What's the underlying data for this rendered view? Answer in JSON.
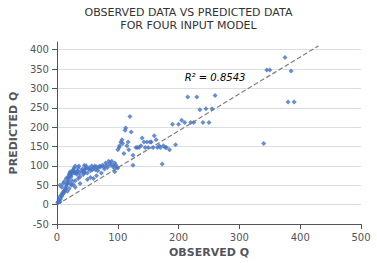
{
  "chart_data": {
    "type": "scatter",
    "title": "OBSERVED DATA VS PREDICTED DATA",
    "subtitle": "FOR FOUR INPUT MODEL",
    "xlabel": "OBSERVED Q",
    "ylabel": "PREDICTED Q",
    "annotations": [
      {
        "text": "R² = 0.8543",
        "x": 210,
        "y": 328
      }
    ],
    "xlim": [
      0,
      500
    ],
    "ylim": [
      -50,
      420
    ],
    "xticks": [
      0,
      100,
      200,
      300,
      400,
      500
    ],
    "yticks": [
      -50,
      0,
      50,
      100,
      150,
      200,
      250,
      300,
      350,
      400
    ],
    "grid": "y",
    "series": [
      {
        "type": "scatter",
        "color": "#4472C4",
        "marker": "diamond",
        "x": [
          1,
          2,
          3,
          4,
          5,
          5,
          6,
          7,
          8,
          8,
          9,
          10,
          10,
          11,
          12,
          12,
          13,
          14,
          15,
          15,
          16,
          17,
          17,
          18,
          18,
          19,
          20,
          20,
          20,
          21,
          22,
          22,
          23,
          24,
          24,
          25,
          25,
          26,
          27,
          27,
          28,
          29,
          30,
          30,
          30,
          31,
          32,
          33,
          34,
          35,
          35,
          36,
          37,
          38,
          38,
          40,
          42,
          43,
          44,
          45,
          45,
          46,
          47,
          48,
          50,
          50,
          52,
          53,
          55,
          55,
          57,
          58,
          60,
          60,
          62,
          63,
          65,
          65,
          67,
          68,
          70,
          72,
          73,
          75,
          77,
          78,
          80,
          82,
          83,
          85,
          87,
          88,
          90,
          92,
          93,
          95,
          95,
          97,
          98,
          100,
          100,
          102,
          103,
          105,
          107,
          108,
          110,
          112,
          113,
          115,
          117,
          118,
          120,
          122,
          125,
          125,
          130,
          132,
          135,
          138,
          140,
          143,
          145,
          148,
          150,
          153,
          155,
          158,
          160,
          163,
          165,
          168,
          170,
          173,
          175,
          178,
          180,
          185,
          190,
          195,
          200,
          205,
          210,
          215,
          220,
          225,
          230,
          235,
          240,
          245,
          250,
          255,
          260,
          340,
          345,
          350,
          375,
          380,
          385,
          390
        ],
        "values": [
          5,
          8,
          12,
          20,
          8,
          50,
          15,
          25,
          22,
          45,
          30,
          28,
          55,
          35,
          32,
          60,
          38,
          42,
          47,
          68,
          52,
          55,
          35,
          60,
          72,
          65,
          70,
          78,
          42,
          82,
          85,
          55,
          72,
          78,
          50,
          82,
          62,
          88,
          90,
          52,
          95,
          82,
          100,
          62,
          45,
          82,
          85,
          78,
          88,
          95,
          68,
          100,
          82,
          72,
          55,
          88,
          92,
          78,
          85,
          102,
          82,
          90,
          95,
          100,
          82,
          65,
          92,
          95,
          88,
          70,
          100,
          90,
          95,
          68,
          100,
          90,
          98,
          75,
          88,
          95,
          100,
          98,
          82,
          102,
          98,
          92,
          108,
          102,
          96,
          112,
          108,
          102,
          112,
          102,
          96,
          108,
          85,
          102,
          96,
          142,
          95,
          148,
          152,
          162,
          168,
          158,
          132,
          192,
          198,
          152,
          162,
          142,
          228,
          188,
          102,
          128,
          148,
          148,
          148,
          152,
          172,
          162,
          148,
          162,
          148,
          162,
          162,
          148,
          178,
          168,
          148,
          152,
          148,
          105,
          152,
          148,
          148,
          142,
          208,
          155,
          208,
          218,
          212,
          278,
          212,
          212,
          278,
          245,
          212,
          248,
          212,
          248,
          282,
          158,
          348,
          348,
          380,
          265,
          345,
          265
        ]
      },
      {
        "type": "line",
        "color": "#808080",
        "line_style": "dashed",
        "x": [
          0,
          430
        ],
        "values": [
          0,
          410
        ]
      }
    ]
  }
}
